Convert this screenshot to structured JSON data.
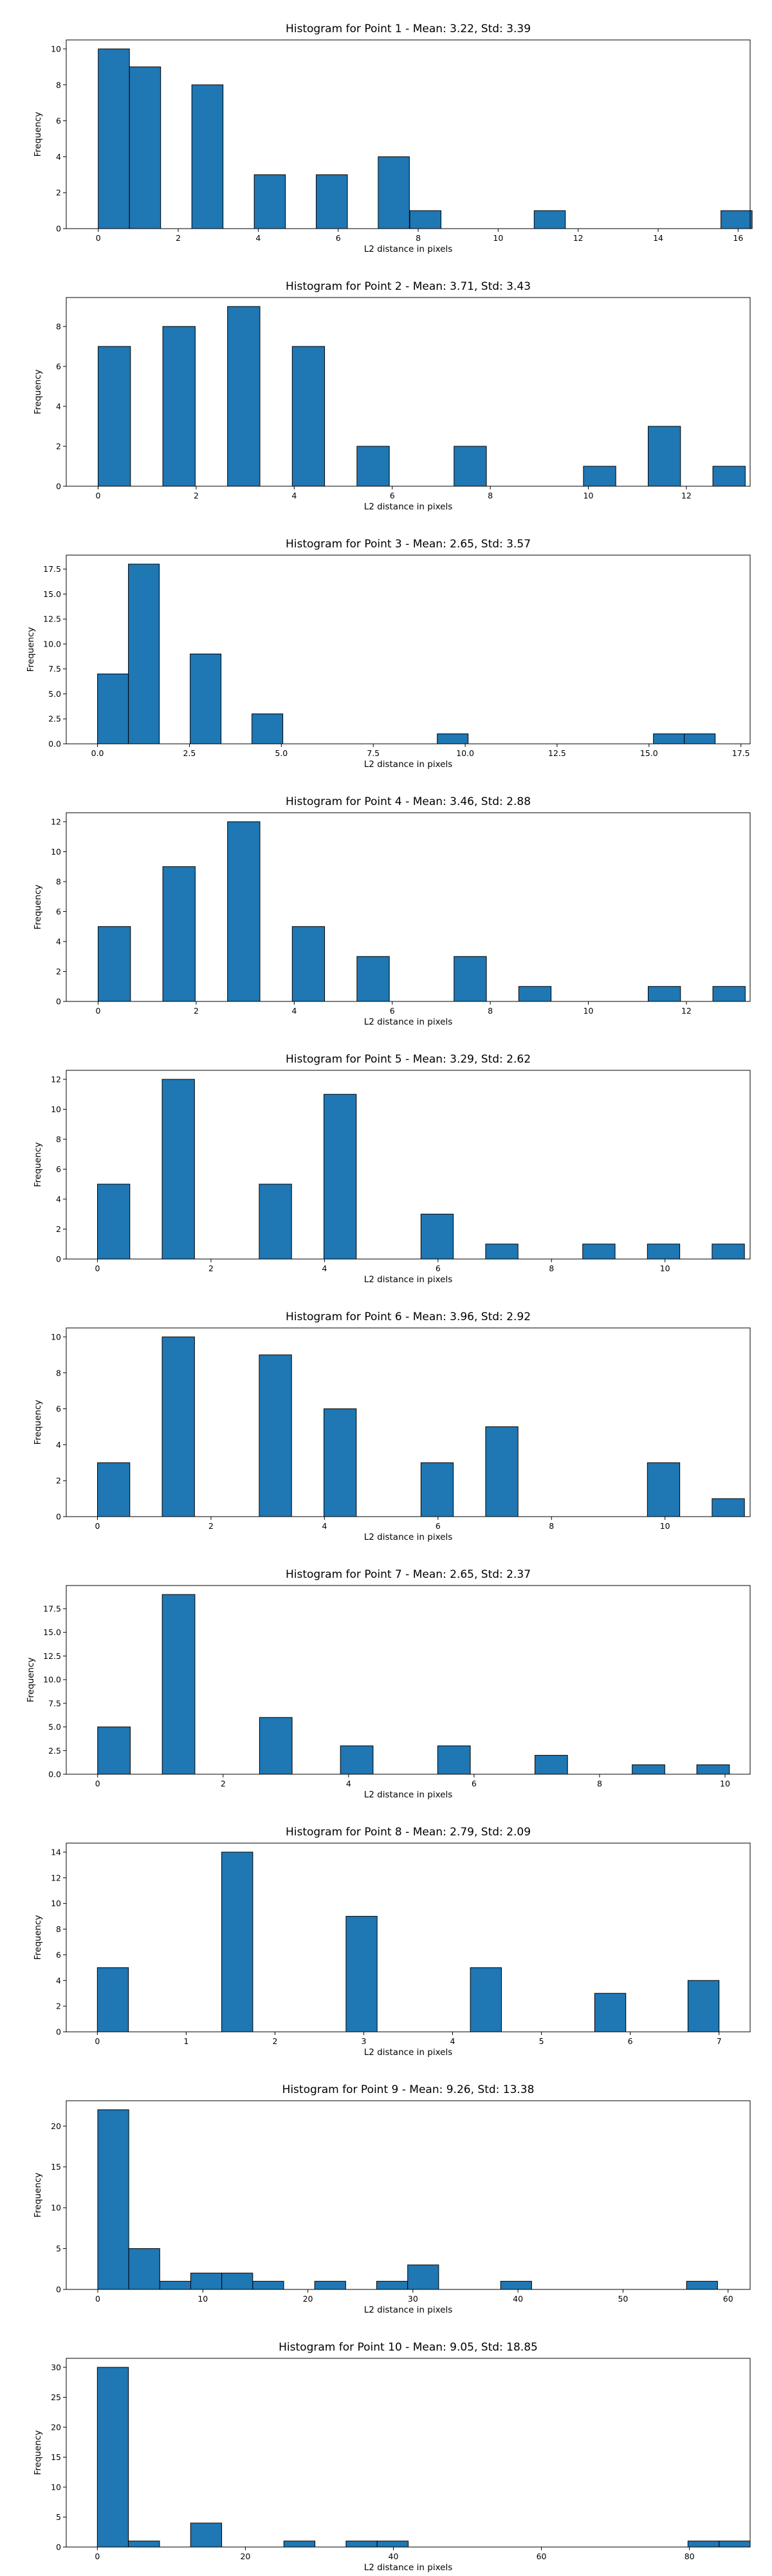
{
  "chart_data": [
    {
      "type": "bar",
      "title": "Histogram for Point 1 - Mean: 3.22, Std: 3.39",
      "xlabel": "L2 distance in pixels",
      "ylabel": "Frequency",
      "xlim": [
        -0.8,
        16.3
      ],
      "ylim": [
        0,
        10.5
      ],
      "xticks": [
        0,
        2,
        4,
        6,
        8,
        10,
        12,
        14,
        16
      ],
      "yticks": [
        0,
        2,
        4,
        6,
        8,
        10
      ],
      "bin_width": 0.78,
      "bins": [
        {
          "x": 0,
          "count": 10
        },
        {
          "x": 0.78,
          "count": 9
        },
        {
          "x": 2.34,
          "count": 8
        },
        {
          "x": 3.9,
          "count": 3
        },
        {
          "x": 5.45,
          "count": 3
        },
        {
          "x": 7.0,
          "count": 4
        },
        {
          "x": 7.79,
          "count": 1
        },
        {
          "x": 10.9,
          "count": 1
        },
        {
          "x": 15.57,
          "count": 1
        }
      ]
    },
    {
      "type": "bar",
      "title": "Histogram for Point 2 - Mean: 3.71, Std: 3.43",
      "xlabel": "L2 distance in pixels",
      "ylabel": "Frequency",
      "xlim": [
        -0.65,
        13.3
      ],
      "ylim": [
        0,
        9.45
      ],
      "xticks": [
        0,
        2,
        4,
        6,
        8,
        10,
        12
      ],
      "yticks": [
        0,
        2,
        4,
        6,
        8
      ],
      "bin_width": 0.66,
      "bins": [
        {
          "x": 0,
          "count": 7
        },
        {
          "x": 1.32,
          "count": 8
        },
        {
          "x": 2.64,
          "count": 9
        },
        {
          "x": 3.96,
          "count": 7
        },
        {
          "x": 5.28,
          "count": 2
        },
        {
          "x": 7.26,
          "count": 2
        },
        {
          "x": 9.9,
          "count": 1
        },
        {
          "x": 11.22,
          "count": 3
        },
        {
          "x": 12.54,
          "count": 1
        }
      ]
    },
    {
      "type": "bar",
      "title": "Histogram for Point 3 - Mean: 2.65, Std: 3.57",
      "xlabel": "L2 distance in pixels",
      "ylabel": "Frequency",
      "xlim": [
        -0.85,
        17.75
      ],
      "ylim": [
        0,
        18.9
      ],
      "xticks": [
        0,
        2.5,
        5,
        7.5,
        10,
        12.5,
        15,
        17.5
      ],
      "xtick_labels": [
        "0.0",
        "2.5",
        "5.0",
        "7.5",
        "10.0",
        "12.5",
        "15.0",
        "17.5"
      ],
      "yticks": [
        0,
        2.5,
        5,
        7.5,
        10,
        12.5,
        15,
        17.5
      ],
      "ytick_labels": [
        "0.0",
        "2.5",
        "5.0",
        "7.5",
        "10.0",
        "12.5",
        "15.0",
        "17.5"
      ],
      "bin_width": 0.84,
      "bins": [
        {
          "x": 0,
          "count": 7
        },
        {
          "x": 0.84,
          "count": 18
        },
        {
          "x": 2.52,
          "count": 9
        },
        {
          "x": 4.2,
          "count": 3
        },
        {
          "x": 9.24,
          "count": 1
        },
        {
          "x": 15.12,
          "count": 1
        },
        {
          "x": 15.96,
          "count": 1
        }
      ]
    },
    {
      "type": "bar",
      "title": "Histogram for Point 4 - Mean: 3.46, Std: 2.88",
      "xlabel": "L2 distance in pixels",
      "ylabel": "Frequency",
      "xlim": [
        -0.65,
        13.3
      ],
      "ylim": [
        0,
        12.6
      ],
      "xticks": [
        0,
        2,
        4,
        6,
        8,
        10,
        12
      ],
      "yticks": [
        0,
        2,
        4,
        6,
        8,
        10,
        12
      ],
      "bin_width": 0.66,
      "bins": [
        {
          "x": 0,
          "count": 5
        },
        {
          "x": 1.32,
          "count": 9
        },
        {
          "x": 2.64,
          "count": 12
        },
        {
          "x": 3.96,
          "count": 5
        },
        {
          "x": 5.28,
          "count": 3
        },
        {
          "x": 7.26,
          "count": 3
        },
        {
          "x": 8.58,
          "count": 1
        },
        {
          "x": 11.22,
          "count": 1
        },
        {
          "x": 12.54,
          "count": 1
        }
      ]
    },
    {
      "type": "bar",
      "title": "Histogram for Point 5 - Mean: 3.29, Std: 2.62",
      "xlabel": "L2 distance in pixels",
      "ylabel": "Frequency",
      "xlim": [
        -0.55,
        11.5
      ],
      "ylim": [
        0,
        12.6
      ],
      "xticks": [
        0,
        2,
        4,
        6,
        8,
        10
      ],
      "yticks": [
        0,
        2,
        4,
        6,
        8,
        10,
        12
      ],
      "bin_width": 0.57,
      "bins": [
        {
          "x": 0,
          "count": 5
        },
        {
          "x": 1.14,
          "count": 12
        },
        {
          "x": 2.85,
          "count": 5
        },
        {
          "x": 3.99,
          "count": 11
        },
        {
          "x": 5.7,
          "count": 3
        },
        {
          "x": 6.84,
          "count": 1
        },
        {
          "x": 8.55,
          "count": 1
        },
        {
          "x": 9.69,
          "count": 1
        },
        {
          "x": 10.83,
          "count": 1
        }
      ]
    },
    {
      "type": "bar",
      "title": "Histogram for Point 6 - Mean: 3.96, Std: 2.92",
      "xlabel": "L2 distance in pixels",
      "ylabel": "Frequency",
      "xlim": [
        -0.55,
        11.5
      ],
      "ylim": [
        0,
        10.5
      ],
      "xticks": [
        0,
        2,
        4,
        6,
        8,
        10
      ],
      "yticks": [
        0,
        2,
        4,
        6,
        8,
        10
      ],
      "bin_width": 0.57,
      "bins": [
        {
          "x": 0,
          "count": 3
        },
        {
          "x": 1.14,
          "count": 10
        },
        {
          "x": 2.85,
          "count": 9
        },
        {
          "x": 3.99,
          "count": 6
        },
        {
          "x": 5.7,
          "count": 3
        },
        {
          "x": 6.84,
          "count": 5
        },
        {
          "x": 9.69,
          "count": 3
        },
        {
          "x": 10.83,
          "count": 1
        }
      ]
    },
    {
      "type": "bar",
      "title": "Histogram for Point 7 - Mean: 2.65, Std: 2.37",
      "xlabel": "L2 distance in pixels",
      "ylabel": "Frequency",
      "xlim": [
        -0.5,
        10.4
      ],
      "ylim": [
        0,
        19.95
      ],
      "xticks": [
        0,
        2,
        4,
        6,
        8,
        10
      ],
      "yticks": [
        0,
        2.5,
        5,
        7.5,
        10,
        12.5,
        15,
        17.5
      ],
      "ytick_labels": [
        "0.0",
        "2.5",
        "5.0",
        "7.5",
        "10.0",
        "12.5",
        "15.0",
        "17.5"
      ],
      "bin_width": 0.52,
      "bins": [
        {
          "x": 0,
          "count": 5
        },
        {
          "x": 1.03,
          "count": 19
        },
        {
          "x": 2.58,
          "count": 6
        },
        {
          "x": 3.87,
          "count": 3
        },
        {
          "x": 5.42,
          "count": 3
        },
        {
          "x": 6.97,
          "count": 2
        },
        {
          "x": 8.52,
          "count": 1
        },
        {
          "x": 9.55,
          "count": 1
        }
      ]
    },
    {
      "type": "bar",
      "title": "Histogram for Point 8 - Mean: 2.79, Std: 2.09",
      "xlabel": "L2 distance in pixels",
      "ylabel": "Frequency",
      "xlim": [
        -0.35,
        7.35
      ],
      "ylim": [
        0,
        14.7
      ],
      "xticks": [
        0,
        1,
        2,
        3,
        4,
        5,
        6,
        7
      ],
      "yticks": [
        0,
        2,
        4,
        6,
        8,
        10,
        12,
        14
      ],
      "bin_width": 0.35,
      "bins": [
        {
          "x": 0,
          "count": 5
        },
        {
          "x": 1.4,
          "count": 14
        },
        {
          "x": 2.8,
          "count": 9
        },
        {
          "x": 4.2,
          "count": 5
        },
        {
          "x": 5.6,
          "count": 3
        },
        {
          "x": 6.65,
          "count": 4
        }
      ]
    },
    {
      "type": "bar",
      "title": "Histogram for Point 9 - Mean: 9.26, Std: 13.38",
      "xlabel": "L2 distance in pixels",
      "ylabel": "Frequency",
      "xlim": [
        -3,
        62.1
      ],
      "ylim": [
        0,
        23.1
      ],
      "xticks": [
        0,
        10,
        20,
        30,
        40,
        50,
        60
      ],
      "yticks": [
        0,
        5,
        10,
        15,
        20
      ],
      "bin_width": 2.95,
      "bins": [
        {
          "x": 0,
          "count": 22
        },
        {
          "x": 2.95,
          "count": 5
        },
        {
          "x": 5.9,
          "count": 1
        },
        {
          "x": 8.85,
          "count": 2
        },
        {
          "x": 11.8,
          "count": 2
        },
        {
          "x": 14.75,
          "count": 1
        },
        {
          "x": 20.65,
          "count": 1
        },
        {
          "x": 26.55,
          "count": 1
        },
        {
          "x": 29.5,
          "count": 3
        },
        {
          "x": 38.35,
          "count": 1
        },
        {
          "x": 56.05,
          "count": 1
        }
      ]
    },
    {
      "type": "bar",
      "title": "Histogram for Point 10 - Mean: 9.05, Std: 18.85",
      "xlabel": "L2 distance in pixels",
      "ylabel": "Frequency",
      "xlim": [
        -4.2,
        88.2
      ],
      "ylim": [
        0,
        31.5
      ],
      "xticks": [
        0,
        20,
        40,
        60,
        80
      ],
      "yticks": [
        0,
        5,
        10,
        15,
        20,
        25,
        30
      ],
      "bin_width": 4.2,
      "bins": [
        {
          "x": 0,
          "count": 30
        },
        {
          "x": 4.2,
          "count": 1
        },
        {
          "x": 12.6,
          "count": 4
        },
        {
          "x": 25.2,
          "count": 1
        },
        {
          "x": 33.6,
          "count": 1
        },
        {
          "x": 37.8,
          "count": 1
        },
        {
          "x": 79.8,
          "count": 1
        },
        {
          "x": 84,
          "count": 1
        }
      ]
    }
  ]
}
